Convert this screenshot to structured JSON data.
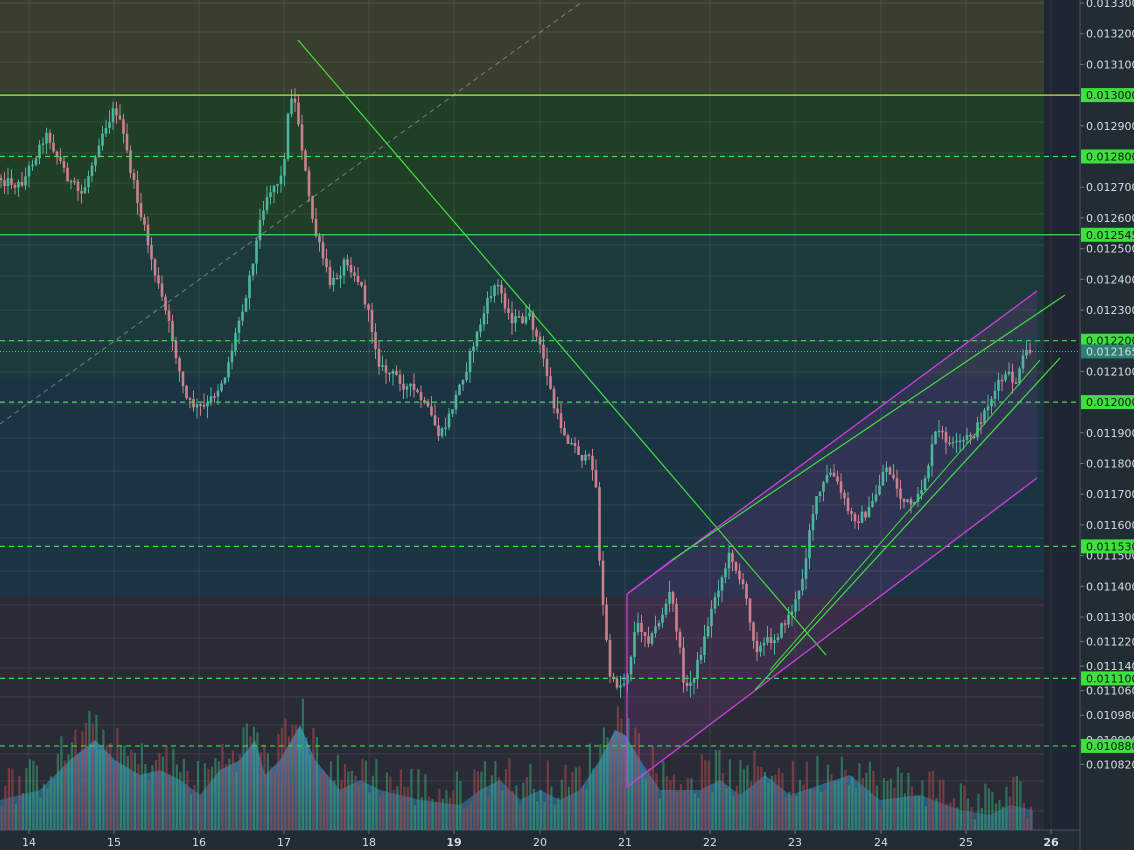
{
  "chart_data": {
    "type": "candlestick",
    "x_axis": {
      "tick_labels": [
        "14",
        "15",
        "16",
        "17",
        "18",
        "19",
        "20",
        "21",
        "22",
        "23",
        "24",
        "25",
        "26"
      ],
      "bold_ticks": [
        "19",
        "26"
      ]
    },
    "y_axis": {
      "range": [
        0.01078,
        0.0133
      ],
      "tick_labels": [
        "0.013300",
        "0.013200",
        "0.013100",
        "0.012900",
        "0.012700",
        "0.012600",
        "0.012500",
        "0.012400",
        "0.012300",
        "0.012100",
        "0.011900",
        "0.011800",
        "0.011700",
        "0.011600",
        "0.011500",
        "0.011400",
        "0.011300",
        "0.011220",
        "0.011140",
        "0.011060",
        "0.010980",
        "0.010900",
        "0.010820"
      ]
    },
    "price_levels": [
      {
        "label": "0.013000",
        "value": 0.013,
        "style": "solid",
        "color": "#c6e645"
      },
      {
        "label": "0.012800",
        "value": 0.0128,
        "style": "dashed",
        "color": "#38e04a"
      },
      {
        "label": "0.012545",
        "value": 0.012545,
        "style": "solid",
        "color": "#38e04a"
      },
      {
        "label": "0.012200",
        "value": 0.0122,
        "style": "dashed",
        "color": "#38e04a"
      },
      {
        "label": "0.012000",
        "value": 0.012,
        "style": "dashed",
        "color": "#38e04a"
      },
      {
        "label": "0.011530",
        "value": 0.01153,
        "style": "dashed",
        "color": "#38e04a"
      },
      {
        "label": "0.011100",
        "value": 0.0111,
        "style": "dashed",
        "color": "#38e04a"
      },
      {
        "label": "0.010880",
        "value": 0.01088,
        "style": "dashed",
        "color": "#38e04a"
      }
    ],
    "last_price": {
      "label": "0.012165",
      "value": 0.012165
    },
    "bull_color": "#4fb59d",
    "bear_color": "#c9828e",
    "volume_area_color": "#3a86b6"
  }
}
